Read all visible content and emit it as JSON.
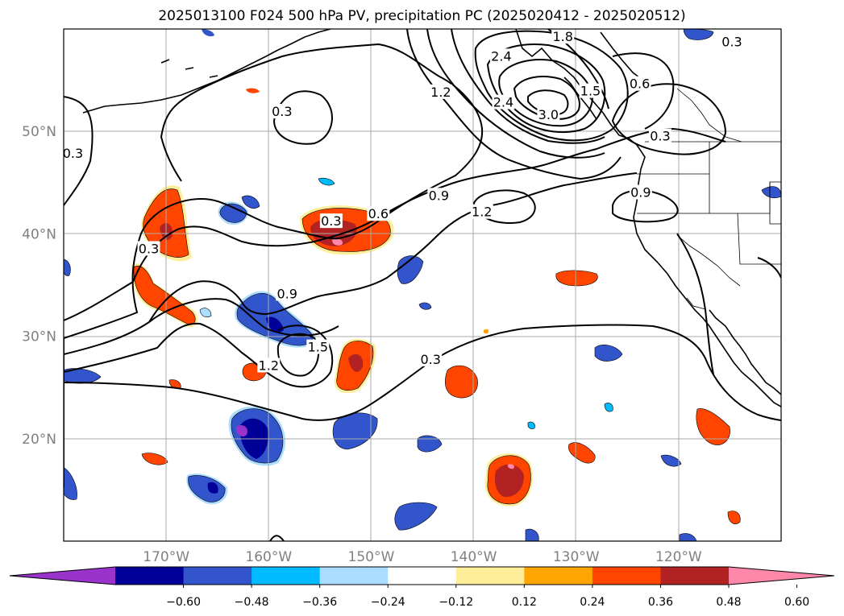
{
  "title": "2025013100 F024 500 hPa PV, precipitation PC (2025020412 - 2025020512)",
  "map": {
    "lon_range": [
      -180,
      -110
    ],
    "lat_range": [
      10,
      60
    ],
    "lat_ticks": [
      {
        "value": 20,
        "label": "20°N"
      },
      {
        "value": 30,
        "label": "30°N"
      },
      {
        "value": 40,
        "label": "40°N"
      },
      {
        "value": 50,
        "label": "50°N"
      }
    ],
    "lon_ticks": [
      {
        "value": -170,
        "label": "170°W"
      },
      {
        "value": -160,
        "label": "160°W"
      },
      {
        "value": -150,
        "label": "150°W"
      },
      {
        "value": -140,
        "label": "140°W"
      },
      {
        "value": -130,
        "label": "130°W"
      },
      {
        "value": -120,
        "label": "120°W"
      }
    ],
    "gridlines": true,
    "contour_labels": [
      {
        "text": "0.3",
        "lon": -158.7,
        "lat": 51.9
      },
      {
        "text": "0.3",
        "lon": -179.1,
        "lat": 47.8
      },
      {
        "text": "1.2",
        "lon": -143.2,
        "lat": 53.8
      },
      {
        "text": "2.4",
        "lon": -137.3,
        "lat": 57.3
      },
      {
        "text": "2.4",
        "lon": -137.1,
        "lat": 52.8
      },
      {
        "text": "1.8",
        "lon": -131.3,
        "lat": 59.2
      },
      {
        "text": "3.0",
        "lon": -132.7,
        "lat": 51.6
      },
      {
        "text": "1.5",
        "lon": -128.6,
        "lat": 53.9
      },
      {
        "text": "0.6",
        "lon": -123.8,
        "lat": 54.6
      },
      {
        "text": "0.3",
        "lon": -121.8,
        "lat": 49.5
      },
      {
        "text": "0.3",
        "lon": -114.8,
        "lat": 58.7
      },
      {
        "text": "0.9",
        "lon": -123.7,
        "lat": 44.0
      },
      {
        "text": "1.2",
        "lon": -139.2,
        "lat": 42.1
      },
      {
        "text": "0.9",
        "lon": -143.4,
        "lat": 43.7
      },
      {
        "text": "0.6",
        "lon": -149.3,
        "lat": 41.9
      },
      {
        "text": "0.3",
        "lon": -153.9,
        "lat": 41.2
      },
      {
        "text": "0.3",
        "lon": -171.7,
        "lat": 38.5
      },
      {
        "text": "0.9",
        "lon": -158.2,
        "lat": 34.1
      },
      {
        "text": "1.5",
        "lon": -155.2,
        "lat": 28.9
      },
      {
        "text": "1.2",
        "lon": -160.0,
        "lat": 27.1
      },
      {
        "text": "0.3",
        "lon": -144.2,
        "lat": 27.7
      }
    ]
  },
  "colorbar": {
    "boundaries": [
      -0.6,
      -0.48,
      -0.36,
      -0.24,
      -0.12,
      0.12,
      0.24,
      0.36,
      0.48,
      0.6
    ],
    "tick_labels": [
      "−0.60",
      "−0.48",
      "−0.36",
      "−0.24",
      "−0.12",
      "0.12",
      "0.24",
      "0.36",
      "0.48",
      "0.60"
    ],
    "colors": [
      "#9933cc",
      "#000099",
      "#3355cc",
      "#00bbff",
      "#aaddff",
      "#ffffff",
      "#ffee99",
      "#ffa500",
      "#ff4500",
      "#b22222",
      "#ff88aa"
    ],
    "extend": "both"
  }
}
